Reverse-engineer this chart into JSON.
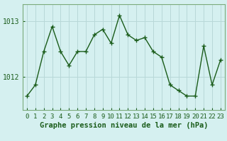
{
  "x": [
    0,
    1,
    2,
    3,
    4,
    5,
    6,
    7,
    8,
    9,
    10,
    11,
    12,
    13,
    14,
    15,
    16,
    17,
    18,
    19,
    20,
    21,
    22,
    23
  ],
  "y": [
    1011.65,
    1011.85,
    1012.45,
    1012.9,
    1012.45,
    1012.2,
    1012.45,
    1012.45,
    1012.75,
    1012.85,
    1012.6,
    1013.1,
    1012.75,
    1012.65,
    1012.7,
    1012.45,
    1012.35,
    1011.85,
    1011.75,
    1011.65,
    1011.65,
    1012.55,
    1011.85,
    1012.3
  ],
  "line_color": "#1a5c1a",
  "marker": "+",
  "marker_size": 4,
  "background_color": "#d5f0f0",
  "grid_color": "#b8d8d8",
  "xlabel": "Graphe pression niveau de la mer (hPa)",
  "xlabel_fontsize": 7.5,
  "yticks": [
    1012,
    1013
  ],
  "ylim": [
    1011.4,
    1013.3
  ],
  "xlim": [
    -0.5,
    23.5
  ],
  "tick_color": "#1a5c1a",
  "tick_fontsize": 6.5,
  "line_width": 1.0,
  "spine_color": "#7aaa7a"
}
